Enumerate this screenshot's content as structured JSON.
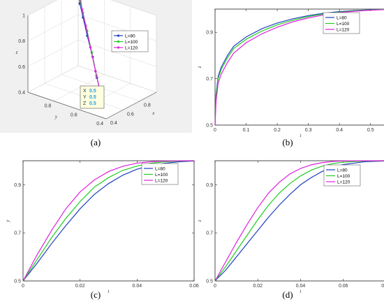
{
  "figure": {
    "captions": [
      "(a)",
      "(b)",
      "(c)",
      "(d)"
    ]
  },
  "colors": {
    "L80": "#1f3fbf",
    "L100": "#22cc22",
    "L120": "#dd22dd",
    "datatip": "#1f9fdf"
  },
  "chart_data": [
    {
      "id": "a",
      "type": "line",
      "projection": "3d",
      "xlabel": "x",
      "ylabel": "y",
      "zlabel": "z",
      "xticks": [
        "0.4",
        "0.6",
        "0.8"
      ],
      "yticks": [
        "0.4",
        "0.6",
        "0.8"
      ],
      "zticks": [
        "0.4",
        "0.6",
        "0.8",
        "1"
      ],
      "xlim": [
        0.4,
        1.0
      ],
      "ylim": [
        0.4,
        1.0
      ],
      "zlim": [
        0.4,
        1.0
      ],
      "grid": true,
      "legend_position": "top-right",
      "series": [
        {
          "name": "L=80",
          "color_key": "L80",
          "x": [
            0.5,
            0.57,
            0.66,
            0.75,
            0.84,
            0.91,
            0.96,
            0.99
          ],
          "y": [
            0.5,
            0.58,
            0.67,
            0.77,
            0.86,
            0.93,
            0.97,
            0.995
          ],
          "z": [
            0.5,
            0.6,
            0.7,
            0.8,
            0.88,
            0.94,
            0.98,
            0.998
          ]
        },
        {
          "name": "L=100",
          "color_key": "L100",
          "x": [
            0.5,
            0.58,
            0.68,
            0.78,
            0.87,
            0.93,
            0.97,
            0.995
          ],
          "y": [
            0.5,
            0.59,
            0.69,
            0.79,
            0.88,
            0.94,
            0.98,
            0.997
          ],
          "z": [
            0.5,
            0.61,
            0.72,
            0.82,
            0.9,
            0.95,
            0.985,
            0.999
          ]
        },
        {
          "name": "L=120",
          "color_key": "L120",
          "x": [
            0.5,
            0.6,
            0.71,
            0.81,
            0.89,
            0.95,
            0.98,
            0.997
          ],
          "y": [
            0.5,
            0.61,
            0.72,
            0.82,
            0.9,
            0.95,
            0.985,
            0.999
          ],
          "z": [
            0.5,
            0.63,
            0.74,
            0.84,
            0.91,
            0.96,
            0.99,
            0.999
          ]
        }
      ],
      "datatip": {
        "x_label": "X",
        "y_label": "Y",
        "z_label": "Z",
        "x": "0.5",
        "y": "0.5",
        "z": "0.5"
      }
    },
    {
      "id": "b",
      "type": "line",
      "xlabel": "t",
      "ylabel": "z",
      "xlim": [
        0,
        0.55
      ],
      "ylim": [
        0.5,
        1.0
      ],
      "xticks": [
        0,
        0.1,
        0.2,
        0.3,
        0.4,
        0.5
      ],
      "xtick_labels": [
        "0",
        "0.1",
        "0.2",
        "0.3",
        "0.4",
        "0.5"
      ],
      "yticks": [
        0.5,
        0.7,
        0.9
      ],
      "ytick_labels": [
        "0.5",
        "0.7",
        "0.9"
      ],
      "grid": false,
      "legend_position": "top-right",
      "series": [
        {
          "name": "L=80",
          "color_key": "L80",
          "x": [
            0,
            0.003,
            0.01,
            0.02,
            0.04,
            0.06,
            0.1,
            0.15,
            0.2,
            0.25,
            0.3,
            0.35,
            0.4,
            0.45,
            0.5,
            0.55
          ],
          "y": [
            0.5,
            0.63,
            0.71,
            0.75,
            0.8,
            0.84,
            0.88,
            0.915,
            0.94,
            0.958,
            0.972,
            0.982,
            0.989,
            0.994,
            0.997,
            0.999
          ]
        },
        {
          "name": "L=100",
          "color_key": "L100",
          "x": [
            0,
            0.003,
            0.01,
            0.02,
            0.04,
            0.06,
            0.1,
            0.15,
            0.2,
            0.25,
            0.3,
            0.35,
            0.4,
            0.45,
            0.5,
            0.55
          ],
          "y": [
            0.5,
            0.62,
            0.7,
            0.74,
            0.79,
            0.83,
            0.87,
            0.905,
            0.932,
            0.952,
            0.968,
            0.979,
            0.987,
            0.993,
            0.996,
            0.999
          ]
        },
        {
          "name": "L=120",
          "color_key": "L120",
          "x": [
            0,
            0.003,
            0.01,
            0.02,
            0.04,
            0.06,
            0.1,
            0.15,
            0.2,
            0.25,
            0.3,
            0.35,
            0.4,
            0.45,
            0.5,
            0.55
          ],
          "y": [
            0.5,
            0.6,
            0.68,
            0.72,
            0.77,
            0.81,
            0.855,
            0.893,
            0.922,
            0.945,
            0.962,
            0.975,
            0.985,
            0.991,
            0.995,
            0.998
          ]
        }
      ]
    },
    {
      "id": "c",
      "type": "line",
      "xlabel": "t",
      "ylabel": "y",
      "xlim": [
        0,
        0.06
      ],
      "ylim": [
        0.5,
        1.0
      ],
      "xticks": [
        0,
        0.02,
        0.04,
        0.06
      ],
      "xtick_labels": [
        "0",
        "0.02",
        "0.04",
        "0.06"
      ],
      "yticks": [
        0.5,
        0.7,
        0.9
      ],
      "ytick_labels": [
        "0.5",
        "0.7",
        "0.9"
      ],
      "grid": false,
      "legend_position": "top-right",
      "series": [
        {
          "name": "L=80",
          "color_key": "L80",
          "x": [
            0,
            0.005,
            0.01,
            0.015,
            0.02,
            0.025,
            0.03,
            0.035,
            0.04,
            0.045,
            0.05,
            0.055,
            0.06
          ],
          "y": [
            0.5,
            0.575,
            0.655,
            0.73,
            0.8,
            0.86,
            0.905,
            0.94,
            0.965,
            0.98,
            0.99,
            0.996,
            0.999
          ]
        },
        {
          "name": "L=100",
          "color_key": "L100",
          "x": [
            0,
            0.005,
            0.01,
            0.015,
            0.02,
            0.025,
            0.03,
            0.035,
            0.04,
            0.045,
            0.05,
            0.055,
            0.06
          ],
          "y": [
            0.5,
            0.59,
            0.68,
            0.76,
            0.83,
            0.89,
            0.93,
            0.96,
            0.978,
            0.99,
            0.996,
            0.999,
            1.0
          ]
        },
        {
          "name": "L=120",
          "color_key": "L120",
          "x": [
            0,
            0.005,
            0.01,
            0.015,
            0.02,
            0.025,
            0.03,
            0.035,
            0.04,
            0.045,
            0.05,
            0.055,
            0.06
          ],
          "y": [
            0.5,
            0.61,
            0.71,
            0.8,
            0.87,
            0.92,
            0.955,
            0.977,
            0.99,
            0.996,
            0.999,
            1.0,
            1.0
          ]
        }
      ]
    },
    {
      "id": "d",
      "type": "line",
      "xlabel": "t",
      "ylabel": "z",
      "xlim": [
        0,
        0.08
      ],
      "ylim": [
        0.5,
        1.0
      ],
      "xticks": [
        0,
        0.02,
        0.04,
        0.06,
        0.08
      ],
      "xtick_labels": [
        "0",
        "0.02",
        "0.04",
        "0.06",
        "0.08"
      ],
      "yticks": [
        0.5,
        0.7,
        0.9
      ],
      "ytick_labels": [
        "0.5",
        "0.7",
        "0.9"
      ],
      "grid": false,
      "legend_position": "top-right",
      "series": [
        {
          "name": "L=80",
          "color_key": "L80",
          "x": [
            0,
            0.005,
            0.01,
            0.015,
            0.02,
            0.025,
            0.03,
            0.035,
            0.04,
            0.045,
            0.05,
            0.055,
            0.06,
            0.07,
            0.08
          ],
          "y": [
            0.5,
            0.545,
            0.6,
            0.655,
            0.71,
            0.765,
            0.815,
            0.86,
            0.9,
            0.93,
            0.955,
            0.972,
            0.984,
            0.996,
            0.999
          ]
        },
        {
          "name": "L=100",
          "color_key": "L100",
          "x": [
            0,
            0.005,
            0.01,
            0.015,
            0.02,
            0.025,
            0.03,
            0.035,
            0.04,
            0.045,
            0.05,
            0.055,
            0.06,
            0.07,
            0.08
          ],
          "y": [
            0.5,
            0.56,
            0.625,
            0.69,
            0.755,
            0.815,
            0.865,
            0.905,
            0.937,
            0.961,
            0.977,
            0.988,
            0.994,
            0.999,
            1.0
          ]
        },
        {
          "name": "L=120",
          "color_key": "L120",
          "x": [
            0,
            0.005,
            0.01,
            0.015,
            0.02,
            0.025,
            0.03,
            0.035,
            0.04,
            0.045,
            0.05,
            0.055,
            0.06,
            0.07,
            0.08
          ],
          "y": [
            0.5,
            0.58,
            0.66,
            0.735,
            0.805,
            0.865,
            0.91,
            0.945,
            0.968,
            0.983,
            0.992,
            0.997,
            0.999,
            1.0,
            1.0
          ]
        }
      ]
    }
  ]
}
